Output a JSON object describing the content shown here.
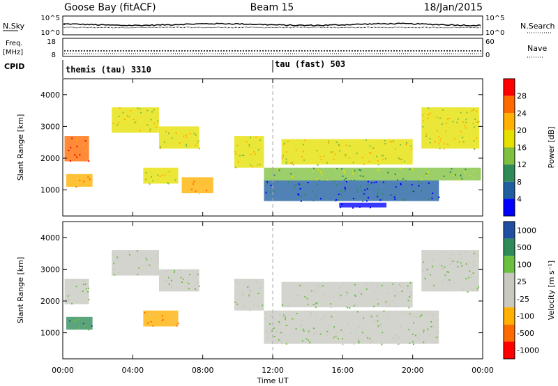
{
  "header": {
    "station": "Goose Bay (fitACF)",
    "beam": "Beam 15",
    "date": "18/Jan/2015"
  },
  "params": {
    "nsky_label": "N.Sky",
    "nsky_ticks": [
      "10^5",
      "10^0"
    ],
    "nsearch_label": "N.Search",
    "nsearch_ticks": [
      "10^5",
      "10^0"
    ],
    "freq_label_1": "Freq.",
    "freq_label_2": "[MHz]",
    "freq_ticks": [
      "18",
      "8"
    ],
    "nave_label": "Nave",
    "nave_ticks": [
      "60",
      "0"
    ],
    "cpid_label": "CPID",
    "cpid_segments": [
      {
        "name": "themis (tau) 3310",
        "start_hour": 0
      },
      {
        "name": "tau (fast) 503",
        "start_hour": 12
      }
    ]
  },
  "chart_data": [
    {
      "type": "heatmap",
      "parameter": "Power",
      "ylabel": "Slant Range [km]",
      "ylim": [
        180,
        4500
      ],
      "yticks": [
        "4000",
        "3000",
        "2000",
        "1000"
      ],
      "xlim_hours": [
        0,
        24
      ],
      "colorbar_label": "Power [dB]",
      "colorbar_ticks": [
        "28",
        "24",
        "20",
        "16",
        "12",
        "8",
        "4"
      ],
      "colorbar_colors": [
        "#ff0000",
        "#ff6a00",
        "#ffb000",
        "#e6e000",
        "#80c040",
        "#2e8b57",
        "#1f5fa0",
        "#0000ff"
      ],
      "regions": [
        {
          "t0": 0.2,
          "t1": 1.7,
          "r0": 1100,
          "r1": 1500,
          "level": 2
        },
        {
          "t0": 0.1,
          "t1": 1.5,
          "r0": 1900,
          "r1": 2700,
          "level": 1
        },
        {
          "t0": 2.8,
          "t1": 5.5,
          "r0": 2800,
          "r1": 3600,
          "level": 3
        },
        {
          "t0": 5.5,
          "t1": 7.8,
          "r0": 2300,
          "r1": 3000,
          "level": 3
        },
        {
          "t0": 4.6,
          "t1": 6.6,
          "r0": 1200,
          "r1": 1700,
          "level": 3
        },
        {
          "t0": 6.8,
          "t1": 8.6,
          "r0": 900,
          "r1": 1400,
          "level": 2
        },
        {
          "t0": 9.8,
          "t1": 11.5,
          "r0": 1700,
          "r1": 2700,
          "level": 3
        },
        {
          "t0": 11.5,
          "t1": 21.5,
          "r0": 650,
          "r1": 1300,
          "level": 6
        },
        {
          "t0": 11.5,
          "t1": 23.9,
          "r0": 1300,
          "r1": 1700,
          "level": 4
        },
        {
          "t0": 12.5,
          "t1": 20.0,
          "r0": 1800,
          "r1": 2600,
          "level": 3
        },
        {
          "t0": 20.5,
          "t1": 23.8,
          "r0": 2300,
          "r1": 3600,
          "level": 3
        },
        {
          "t0": 15.8,
          "t1": 18.5,
          "r0": 450,
          "r1": 600,
          "level": 7
        }
      ]
    },
    {
      "type": "heatmap",
      "parameter": "Velocity",
      "ylabel": "Slant Range [km]",
      "ylim": [
        180,
        4500
      ],
      "yticks": [
        "4000",
        "3000",
        "2000",
        "1000"
      ],
      "xlim_hours": [
        0,
        24
      ],
      "xlabel": "Time UT",
      "xticks": [
        "00:00",
        "04:00",
        "08:00",
        "12:00",
        "16:00",
        "20:00",
        "00:00"
      ],
      "colorbar_label": "Velocity [m s⁻¹]",
      "colorbar_ticks": [
        "1000",
        "500",
        "100",
        "25",
        "-25",
        "-100",
        "-500",
        "-1000"
      ],
      "colorbar_colors": [
        "#1f4fa0",
        "#2e8b57",
        "#6cc040",
        "#c8c8c0",
        "#c8c8c0",
        "#ffb000",
        "#ff6a00",
        "#ff0000"
      ],
      "regions": [
        {
          "t0": 0.2,
          "t1": 1.7,
          "r0": 1100,
          "r1": 1500,
          "level": 1
        },
        {
          "t0": 0.1,
          "t1": 1.5,
          "r0": 1900,
          "r1": 2700,
          "level": 3
        },
        {
          "t0": 2.8,
          "t1": 5.5,
          "r0": 2800,
          "r1": 3600,
          "level": 3
        },
        {
          "t0": 5.5,
          "t1": 7.8,
          "r0": 2300,
          "r1": 3000,
          "level": 3
        },
        {
          "t0": 4.6,
          "t1": 6.6,
          "r0": 1200,
          "r1": 1700,
          "level": 5
        },
        {
          "t0": 9.8,
          "t1": 11.5,
          "r0": 1700,
          "r1": 2700,
          "level": 3
        },
        {
          "t0": 11.5,
          "t1": 21.5,
          "r0": 650,
          "r1": 1700,
          "level": 3
        },
        {
          "t0": 12.5,
          "t1": 20.0,
          "r0": 1800,
          "r1": 2600,
          "level": 3
        },
        {
          "t0": 20.5,
          "t1": 23.8,
          "r0": 2300,
          "r1": 3600,
          "level": 3
        }
      ]
    }
  ]
}
